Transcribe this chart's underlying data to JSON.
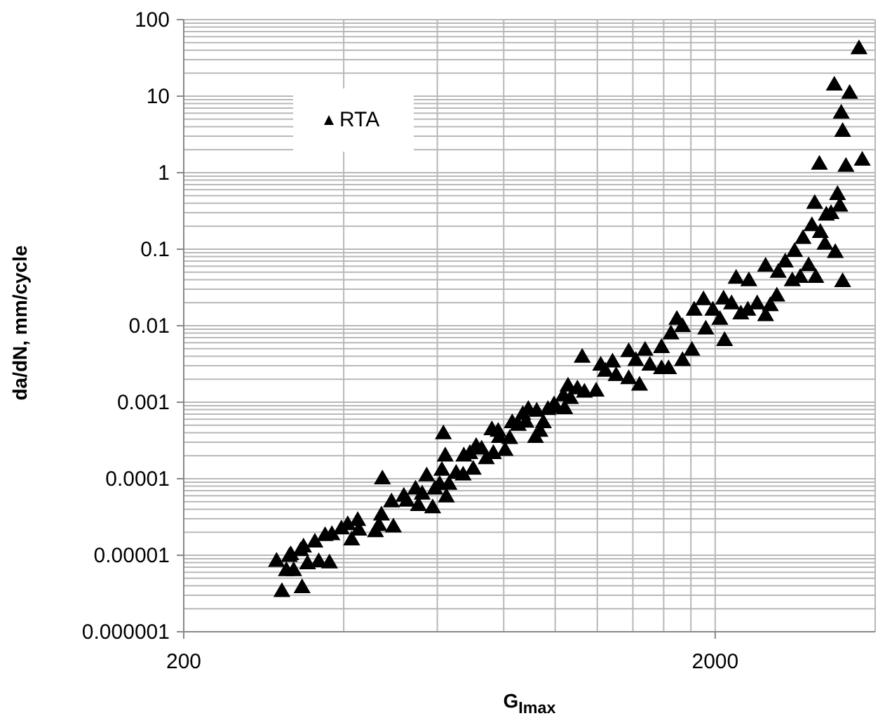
{
  "chart_data": {
    "type": "scatter",
    "xlabel": "G$_{Imax}$",
    "ylabel": "da/dN, mm/cycle",
    "log": "xy",
    "grid": true,
    "legend": "top left",
    "marker": "triangle",
    "xlim": [
      200,
      4000
    ],
    "ylim": [
      1e-06,
      100
    ],
    "xticks": [
      200,
      {
        "value": 400,
        "label": null
      },
      {
        "value": 600,
        "label": null
      },
      {
        "value": 800,
        "label": null
      },
      {
        "value": 1000,
        "label": null
      },
      {
        "value": 1200,
        "label": null
      },
      {
        "value": 1400,
        "label": null
      },
      {
        "value": 1600,
        "label": null
      },
      {
        "value": 1800,
        "label": null
      },
      2000
    ],
    "yticks": [
      {
        "value": 1e-06,
        "label": "0.000001"
      },
      {
        "value": 2e-06,
        "label": null
      },
      {
        "value": 3e-06,
        "label": null
      },
      {
        "value": 4e-06,
        "label": null
      },
      {
        "value": 5e-06,
        "label": null
      },
      {
        "value": 6e-06,
        "label": null
      },
      {
        "value": 7e-06,
        "label": null
      },
      {
        "value": 8e-06,
        "label": null
      },
      {
        "value": 9e-06,
        "label": null
      },
      {
        "value": 1e-05,
        "label": "0.00001"
      },
      {
        "value": 2e-05,
        "label": null
      },
      {
        "value": 3e-05,
        "label": null
      },
      {
        "value": 4e-05,
        "label": null
      },
      {
        "value": 5e-05,
        "label": null
      },
      {
        "value": 6e-05,
        "label": null
      },
      {
        "value": 7e-05,
        "label": null
      },
      {
        "value": 8e-05,
        "label": null
      },
      {
        "value": 9e-05,
        "label": null
      },
      0.0001,
      {
        "value": 0.0002,
        "label": null
      },
      {
        "value": 0.0003,
        "label": null
      },
      {
        "value": 0.0004,
        "label": null
      },
      {
        "value": 0.0005,
        "label": null
      },
      {
        "value": 0.0006,
        "label": null
      },
      {
        "value": 0.0007,
        "label": null
      },
      {
        "value": 0.0008,
        "label": null
      },
      {
        "value": 0.0009,
        "label": null
      },
      0.001,
      {
        "value": 0.002,
        "label": null
      },
      {
        "value": 0.003,
        "label": null
      },
      {
        "value": 0.004,
        "label": null
      },
      {
        "value": 0.005,
        "label": null
      },
      {
        "value": 0.006,
        "label": null
      },
      {
        "value": 0.007,
        "label": null
      },
      {
        "value": 0.008,
        "label": null
      },
      {
        "value": 0.009,
        "label": null
      },
      0.01,
      {
        "value": 0.02,
        "label": null
      },
      {
        "value": 0.03,
        "label": null
      },
      {
        "value": 0.04,
        "label": null
      },
      {
        "value": 0.05,
        "label": null
      },
      {
        "value": 0.06,
        "label": null
      },
      {
        "value": 0.07,
        "label": null
      },
      {
        "value": 0.08,
        "label": null
      },
      {
        "value": 0.09,
        "label": null
      },
      0.1,
      {
        "value": 0.2,
        "label": null
      },
      {
        "value": 0.3,
        "label": null
      },
      {
        "value": 0.4,
        "label": null
      },
      {
        "value": 0.5,
        "label": null
      },
      {
        "value": 0.6,
        "label": null
      },
      {
        "value": 0.7,
        "label": null
      },
      {
        "value": 0.8,
        "label": null
      },
      {
        "value": 0.9,
        "label": null
      },
      1,
      {
        "value": 2,
        "label": null
      },
      {
        "value": 3,
        "label": null
      },
      {
        "value": 4,
        "label": null
      },
      {
        "value": 5,
        "label": null
      },
      {
        "value": 6,
        "label": null
      },
      {
        "value": 7,
        "label": null
      },
      {
        "value": 8,
        "label": null
      },
      {
        "value": 9,
        "label": null
      },
      10,
      {
        "value": 20,
        "label": null
      },
      {
        "value": 30,
        "label": null
      },
      {
        "value": 40,
        "label": null
      },
      {
        "value": 50,
        "label": null
      },
      {
        "value": 60,
        "label": null
      },
      {
        "value": 70,
        "label": null
      },
      {
        "value": 80,
        "label": null
      },
      {
        "value": 90,
        "label": null
      },
      100
    ],
    "series": [
      {
        "name": "RTA",
        "color": "#000000",
        "x": [
          299,
          306,
          312,
          316,
          318,
          322,
          332,
          334,
          336,
          342,
          353,
          359,
          369,
          376,
          380,
          396,
          407,
          414,
          425,
          427,
          459,
          466,
          471,
          473,
          496,
          492,
          519,
          526,
          546,
          553,
          562,
          573,
          588,
          594,
          606,
          612,
          616,
          621,
          624,
          631,
          651,
          671,
          673,
          691,
          701,
          710,
          727,
          742,
          760,
          765,
          781,
          785,
          805,
          821,
          830,
          852,
          869,
          881,
          890,
          918,
          923,
          936,
          950,
          969,
          995,
          1005,
          1036,
          1042,
          1057,
          1068,
          1101,
          1124,
          1135,
          1194,
          1218,
          1243,
          1282,
          1302,
          1375,
          1441,
          1418,
          1507,
          1585,
          1634,
          1736,
          1375,
          1476,
          1585,
          1651,
          1694,
          1736,
          1808,
          1826,
          1901,
          1920,
          1980,
          2041,
          2074,
          2083,
          2147,
          2190,
          2235,
          2314,
          2304,
          2399,
          2488,
          2488,
          2539,
          2612,
          2628,
          2709,
          2793,
          2821,
          2891,
          2926,
          2998,
          3041,
          3078,
          3093,
          3141,
          3154,
          3218,
          3237,
          3304,
          3351,
          3365,
          3398,
          3432,
          3453,
          3474,
          3474,
          3524,
          3581,
          3729,
          3782
        ],
        "values": [
          8.2e-06,
          3.3e-06,
          6.2e-06,
          9.5e-06,
          1e-05,
          6.2e-06,
          1.13e-05,
          3.7e-06,
          1.26e-05,
          7.6e-06,
          1.46e-05,
          8.1e-06,
          1.78e-05,
          7.8e-06,
          1.83e-05,
          2.17e-05,
          2.47e-05,
          1.56e-05,
          2.8e-05,
          2.1e-05,
          2e-05,
          2.4e-05,
          3.3e-05,
          9.8e-05,
          2.3e-05,
          4.9e-05,
          5.8e-05,
          5e-05,
          7.2e-05,
          4.4e-05,
          6.2e-05,
          0.000107,
          4.1e-05,
          7.2e-05,
          8.3e-05,
          0.000127,
          0.00038,
          0.000195,
          5.7e-05,
          8.3e-05,
          0.000116,
          0.00011,
          0.000195,
          0.00021,
          0.000131,
          0.00026,
          0.00024,
          0.00018,
          0.00043,
          0.00021,
          0.00041,
          0.00034,
          0.00023,
          0.00033,
          0.00053,
          0.00049,
          0.00068,
          0.00054,
          0.00079,
          0.00034,
          0.00075,
          0.00041,
          0.00053,
          0.00079,
          0.00091,
          0.00083,
          0.00119,
          0.00081,
          0.0016,
          0.0011,
          0.00147,
          0.0038,
          0.00133,
          0.00137,
          0.003,
          0.0025,
          0.0033,
          0.0022,
          0.002,
          0.00164,
          0.00345,
          0.003,
          0.0027,
          0.0027,
          0.00345,
          0.0045,
          0.0047,
          0.0051,
          0.0077,
          0.0119,
          0.0096,
          0.0047,
          0.0157,
          0.0215,
          0.0089,
          0.0157,
          0.0119,
          0.022,
          0.0063,
          0.019,
          0.041,
          0.014,
          0.038,
          0.0157,
          0.019,
          0.0133,
          0.059,
          0.018,
          0.024,
          0.049,
          0.067,
          0.038,
          0.092,
          0.042,
          0.136,
          0.06,
          0.2,
          0.39,
          0.042,
          1.27,
          0.163,
          0.114,
          0.275,
          0.287,
          13.7,
          0.089,
          0.51,
          0.36,
          5.9,
          3.4,
          0.037,
          1.19,
          10.7,
          41,
          1.43
        ]
      }
    ]
  }
}
